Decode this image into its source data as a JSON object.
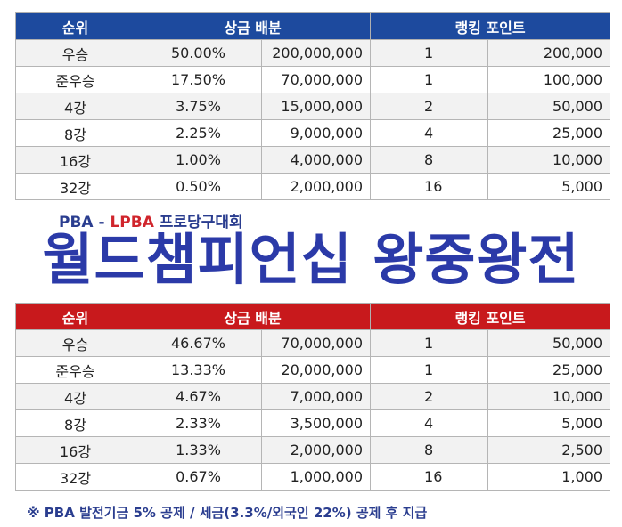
{
  "top_table": {
    "headers": {
      "rank": "순위",
      "prize": "상금 배분",
      "points": "랭킹 포인트"
    },
    "rows": [
      {
        "rank": "우승",
        "pct": "50.00%",
        "amount": "200,000,000",
        "count": "1",
        "points": "200,000"
      },
      {
        "rank": "준우승",
        "pct": "17.50%",
        "amount": "70,000,000",
        "count": "1",
        "points": "100,000"
      },
      {
        "rank": "4강",
        "pct": "3.75%",
        "amount": "15,000,000",
        "count": "2",
        "points": "50,000"
      },
      {
        "rank": "8강",
        "pct": "2.25%",
        "amount": "9,000,000",
        "count": "4",
        "points": "25,000"
      },
      {
        "rank": "16강",
        "pct": "1.00%",
        "amount": "4,000,000",
        "count": "8",
        "points": "10,000"
      },
      {
        "rank": "32강",
        "pct": "0.50%",
        "amount": "2,000,000",
        "count": "16",
        "points": "5,000"
      }
    ]
  },
  "subtitle": {
    "part1": "PBA - ",
    "part2": "LPBA",
    "part3": " 프로당구대회"
  },
  "main_title": "월드챔피언십 왕중왕전",
  "bottom_table": {
    "headers": {
      "rank": "순위",
      "prize": "상금 배분",
      "points": "랭킹 포인트"
    },
    "rows": [
      {
        "rank": "우승",
        "pct": "46.67%",
        "amount": "70,000,000",
        "count": "1",
        "points": "50,000"
      },
      {
        "rank": "준우승",
        "pct": "13.33%",
        "amount": "20,000,000",
        "count": "1",
        "points": "25,000"
      },
      {
        "rank": "4강",
        "pct": "4.67%",
        "amount": "7,000,000",
        "count": "2",
        "points": "10,000"
      },
      {
        "rank": "8강",
        "pct": "2.33%",
        "amount": "3,500,000",
        "count": "4",
        "points": "5,000"
      },
      {
        "rank": "16강",
        "pct": "1.33%",
        "amount": "2,000,000",
        "count": "8",
        "points": "2,500"
      },
      {
        "rank": "32강",
        "pct": "0.67%",
        "amount": "1,000,000",
        "count": "16",
        "points": "1,000"
      }
    ]
  },
  "footnote": "※ PBA 발전기금 5% 공제  / 세금(3.3%/외국인 22%) 공제 후 지급"
}
